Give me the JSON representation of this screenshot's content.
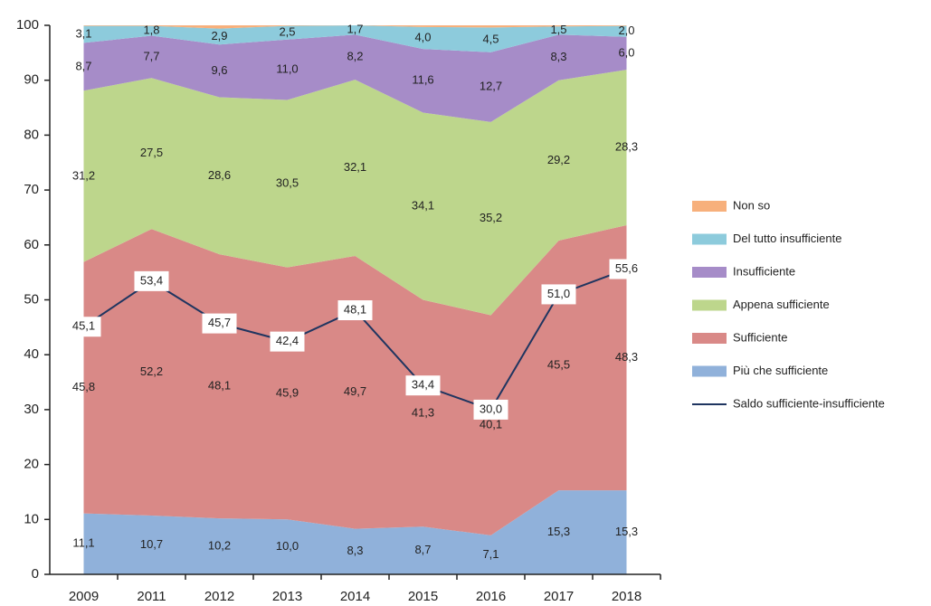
{
  "chart_data": {
    "type": "area",
    "categories": [
      "2009",
      "2011",
      "2012",
      "2013",
      "2014",
      "2015",
      "2016",
      "2017",
      "2018"
    ],
    "ylim": [
      0,
      100
    ],
    "yticks": [
      0,
      10,
      20,
      30,
      40,
      50,
      60,
      70,
      80,
      90,
      100
    ],
    "series": [
      {
        "name": "Non so",
        "color": "#f7b07c",
        "type": "area",
        "values": [
          0.1,
          0.1,
          0.6,
          0.1,
          0,
          0.3,
          0.4,
          0.2,
          0.1
        ]
      },
      {
        "name": "Del tutto insufficiente",
        "color": "#8dcbdc",
        "type": "area",
        "values": [
          3.1,
          1.8,
          2.9,
          2.5,
          1.7,
          4.0,
          4.5,
          1.5,
          2.0
        ],
        "value_labels": [
          "3,1",
          "1,8",
          "2,9",
          "2,5",
          "1,7",
          "4,0",
          "4,5",
          "1,5",
          "2,0"
        ]
      },
      {
        "name": "Insufficiente",
        "color": "#a68cc8",
        "type": "area",
        "values": [
          8.7,
          7.7,
          9.6,
          11.0,
          8.2,
          11.6,
          12.7,
          8.3,
          6.0
        ],
        "value_labels": [
          "8,7",
          "7,7",
          "9,6",
          "11,0",
          "8,2",
          "11,6",
          "12,7",
          "8,3",
          "6,0"
        ]
      },
      {
        "name": "Appena sufficiente",
        "color": "#bdd68c",
        "type": "area",
        "values": [
          31.2,
          27.5,
          28.6,
          30.5,
          32.1,
          34.1,
          35.2,
          29.2,
          28.3
        ],
        "value_labels": [
          "31,2",
          "27,5",
          "28,6",
          "30,5",
          "32,1",
          "34,1",
          "35,2",
          "29,2",
          "28,3"
        ]
      },
      {
        "name": "Sufficiente",
        "color": "#d98987",
        "type": "area",
        "values": [
          45.8,
          52.2,
          48.1,
          45.9,
          49.7,
          41.3,
          40.1,
          45.5,
          48.3
        ],
        "value_labels": [
          "45,8",
          "52,2",
          "48,1",
          "45,9",
          "49,7",
          "41,3",
          "40,1",
          "45,5",
          "48,3"
        ]
      },
      {
        "name": "Più che sufficiente",
        "color": "#90b1da",
        "type": "area",
        "values": [
          11.1,
          10.7,
          10.2,
          10.0,
          8.3,
          8.7,
          7.1,
          15.3,
          15.3
        ],
        "value_labels": [
          "11,1",
          "10,7",
          "10,2",
          "10,0",
          "8,3",
          "8,7",
          "7,1",
          "15,3",
          "15,3"
        ]
      },
      {
        "name": "Saldo sufficiente-insufficiente",
        "color": "#1f3560",
        "type": "line",
        "values": [
          45.1,
          53.4,
          45.7,
          42.4,
          48.1,
          34.4,
          30.0,
          51.0,
          55.6
        ],
        "value_labels": [
          "45,1",
          "53,4",
          "45,7",
          "42,4",
          "48,1",
          "34,4",
          "30,0",
          "51,0",
          "55,6"
        ]
      }
    ]
  }
}
